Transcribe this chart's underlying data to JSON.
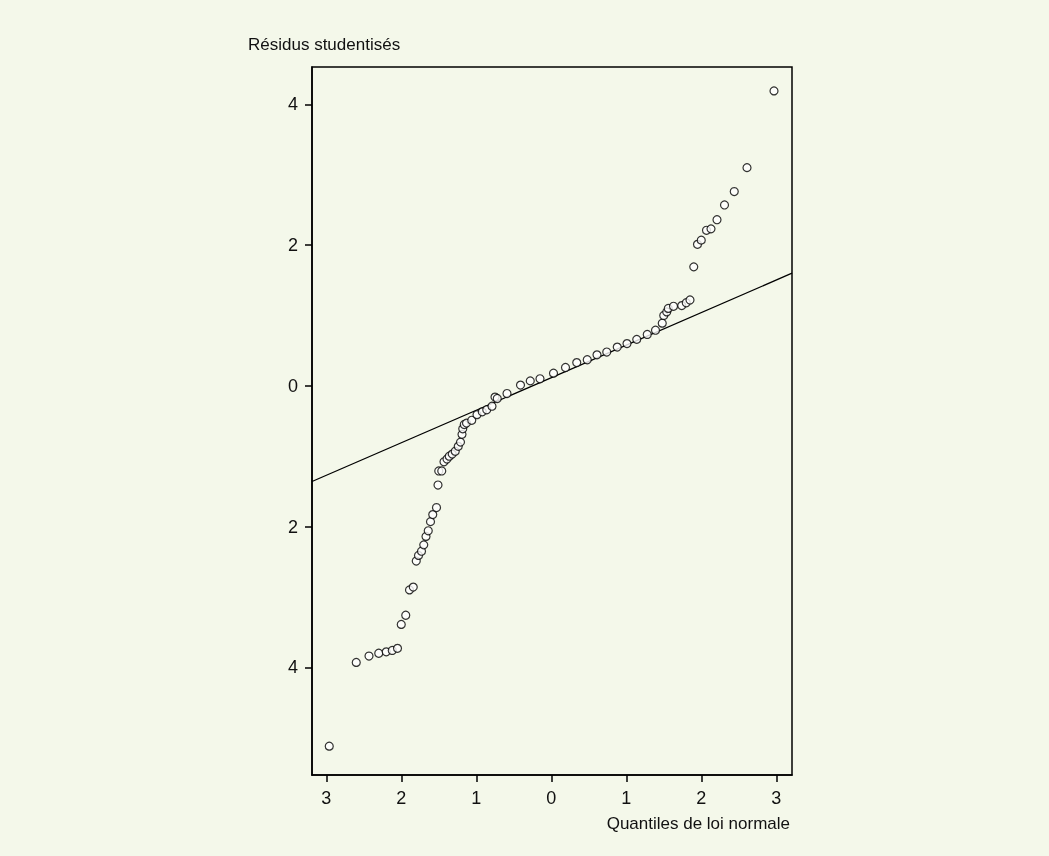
{
  "chart_data": {
    "type": "scatter",
    "xlabel": "Quantiles de loi normale",
    "ylabel": "Résidus studentisés",
    "xlim": [
      -3.19,
      3.21
    ],
    "ylim": [
      -5.53,
      4.53
    ],
    "xticks": [
      {
        "value": -3,
        "label": "3"
      },
      {
        "value": -2,
        "label": "2"
      },
      {
        "value": -1,
        "label": "1"
      },
      0,
      1,
      2,
      3
    ],
    "yticks": [
      {
        "value": -4,
        "label": "4"
      },
      {
        "value": -2,
        "label": "2"
      },
      0,
      2,
      4
    ],
    "grid": false,
    "series": [
      {
        "marker": "circle",
        "color": "#000000",
        "x": [
          -2.96,
          -2.6,
          -2.43,
          -2.3,
          -2.2,
          -2.12,
          -2.05,
          -2.0,
          -1.94,
          -1.89,
          -1.84,
          -1.8,
          -1.77,
          -1.73,
          -1.7,
          -1.67,
          -1.64,
          -1.61,
          -1.58,
          -1.53,
          -1.51,
          -1.5,
          -1.46,
          -1.43,
          -1.39,
          -1.36,
          -1.32,
          -1.28,
          -1.24,
          -1.21,
          -1.19,
          -1.18,
          -1.16,
          -1.13,
          -1.06,
          -0.99,
          -0.92,
          -0.86,
          -0.79,
          -0.75,
          -0.72,
          -0.59,
          -0.41,
          -0.28,
          -0.15,
          0.03,
          0.19,
          0.34,
          0.48,
          0.61,
          0.74,
          0.88,
          1.01,
          1.14,
          1.28,
          1.39,
          1.48,
          1.5,
          1.54,
          1.56,
          1.63,
          1.74,
          1.8,
          1.85,
          1.9,
          1.95,
          2.0,
          2.07,
          2.13,
          2.21,
          2.31,
          2.44,
          2.61,
          2.97
        ],
        "values": [
          -5.12,
          -3.93,
          -3.84,
          -3.8,
          -3.78,
          -3.76,
          -3.73,
          -3.39,
          -3.26,
          -2.9,
          -2.86,
          -2.49,
          -2.41,
          -2.35,
          -2.26,
          -2.14,
          -2.06,
          -1.93,
          -1.83,
          -1.73,
          -1.41,
          -1.21,
          -1.21,
          -1.08,
          -1.04,
          -1.0,
          -0.97,
          -0.93,
          -0.86,
          -0.8,
          -0.69,
          -0.61,
          -0.55,
          -0.53,
          -0.49,
          -0.41,
          -0.37,
          -0.34,
          -0.29,
          -0.16,
          -0.18,
          -0.11,
          0.01,
          0.07,
          0.1,
          0.18,
          0.26,
          0.33,
          0.37,
          0.44,
          0.48,
          0.55,
          0.6,
          0.66,
          0.73,
          0.79,
          0.89,
          1.0,
          1.05,
          1.1,
          1.13,
          1.14,
          1.18,
          1.22,
          1.69,
          2.01,
          2.07,
          2.21,
          2.23,
          2.36,
          2.57,
          2.76,
          3.1,
          4.19
        ]
      },
      {
        "type": "line",
        "marker": "none",
        "line_style": "solid",
        "color": "#000000",
        "x": [
          -3.19,
          3.21
        ],
        "values": [
          -1.36,
          1.6
        ]
      }
    ]
  }
}
